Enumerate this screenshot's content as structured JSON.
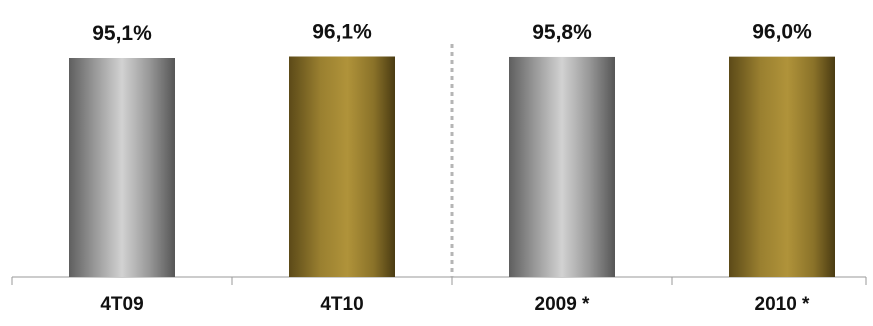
{
  "chart_data": {
    "type": "bar",
    "categories": [
      "4T09",
      "4T10",
      "2009 *",
      "2010 *"
    ],
    "values": [
      95.1,
      96.1,
      95.8,
      96.0
    ],
    "data_labels": [
      "95,1%",
      "96,1%",
      "95,8%",
      "96,0%"
    ],
    "series_colors": [
      "#a9a9a9",
      "#9c8430",
      "#a9a9a9",
      "#9c8430"
    ],
    "title": "",
    "xlabel": "",
    "ylabel": "",
    "grid": false,
    "legend": "none",
    "separator": "dashed line between 4T10 and 2009 *"
  }
}
